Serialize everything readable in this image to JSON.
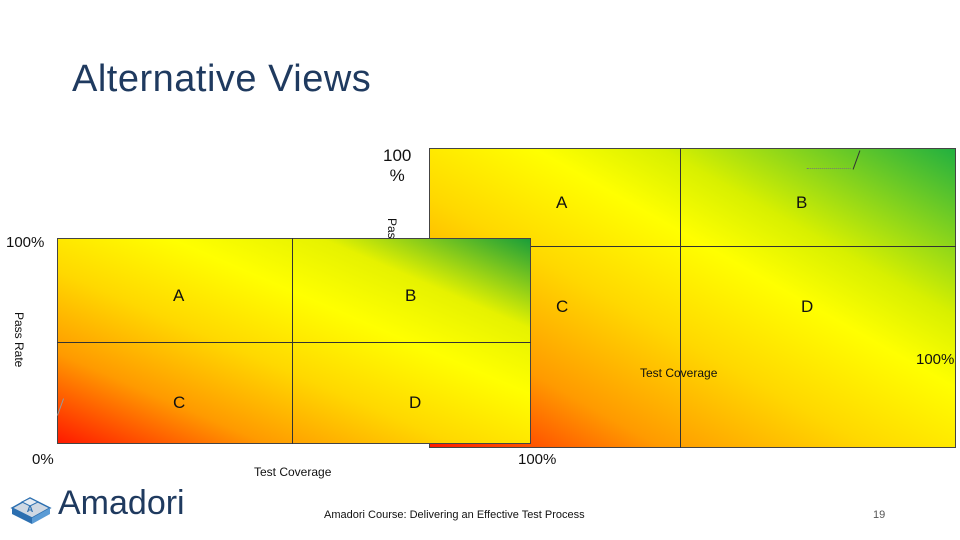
{
  "slide": {
    "title": "Alternative Views",
    "footer": "Amadori Course: Delivering an Effective Test Process",
    "page_number": "19"
  },
  "back_grid": {
    "y_top_label": "100\n%",
    "y_axis_label": "Pass Rate",
    "x_right_label": "100%",
    "x_axis_label": "Test Coverage",
    "quadrants": {
      "a": "A",
      "b": "B",
      "c": "C",
      "d": "D"
    }
  },
  "front_grid": {
    "y_top_label": "100%",
    "y_axis_label": "Pass Rate",
    "origin_label": "0%",
    "x_right_label": "100%",
    "x_axis_label": "Test Coverage",
    "quadrants": {
      "a": "A",
      "b": "B",
      "c": "C",
      "d": "D"
    }
  },
  "logo": {
    "text": "Amadori"
  },
  "colors": {
    "title": "#1f3a5f",
    "high": "#22b040",
    "low": "#ff1a00"
  }
}
